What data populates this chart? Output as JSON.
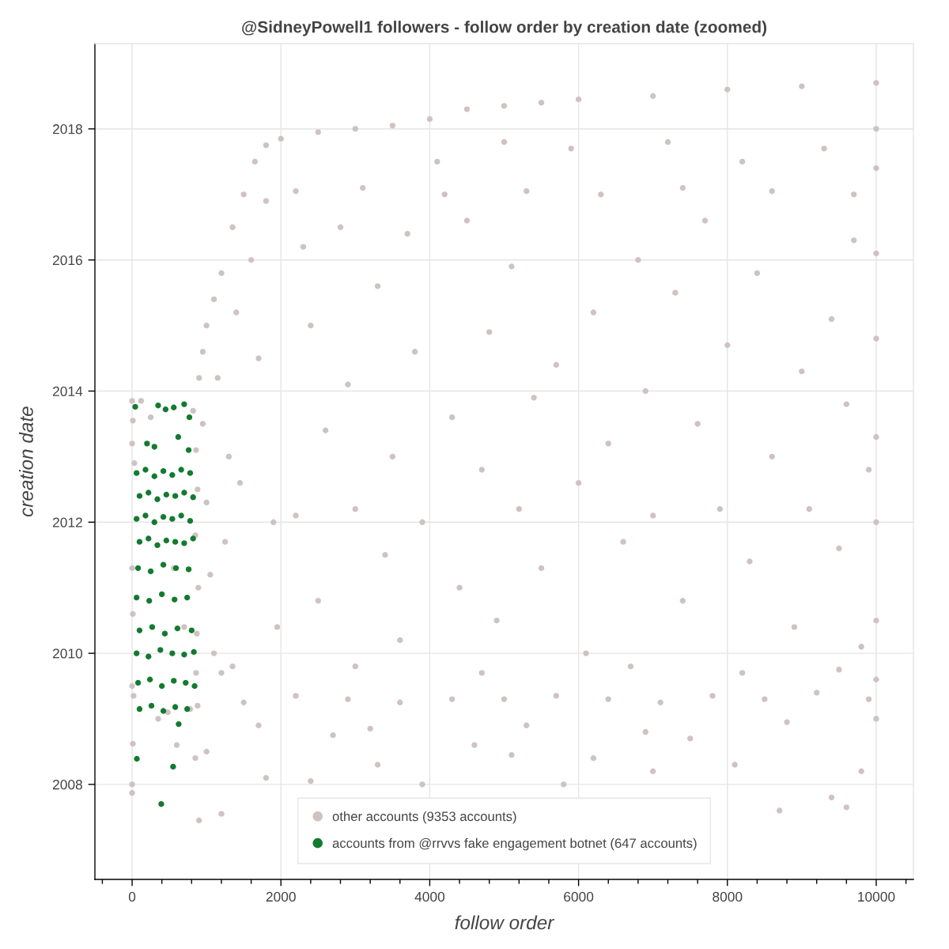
{
  "chart_data": {
    "type": "scatter",
    "title": "@SidneyPowell1 followers - follow order by creation date (zoomed)",
    "xlabel": "follow order",
    "ylabel": "creation date",
    "xlim": [
      -500,
      10500
    ],
    "ylim": [
      2006.55,
      2019.3
    ],
    "xticks": [
      {
        "value": -400,
        "label": null
      },
      0,
      {
        "value": 400,
        "label": null
      },
      {
        "value": 800,
        "label": null
      },
      {
        "value": 1200,
        "label": null
      },
      {
        "value": 1600,
        "label": null
      },
      2000,
      {
        "value": 2400,
        "label": null
      },
      {
        "value": 2800,
        "label": null
      },
      {
        "value": 3200,
        "label": null
      },
      {
        "value": 3600,
        "label": null
      },
      4000,
      {
        "value": 4400,
        "label": null
      },
      {
        "value": 4800,
        "label": null
      },
      {
        "value": 5200,
        "label": null
      },
      {
        "value": 5600,
        "label": null
      },
      6000,
      {
        "value": 6400,
        "label": null
      },
      {
        "value": 6800,
        "label": null
      },
      {
        "value": 7200,
        "label": null
      },
      {
        "value": 7600,
        "label": null
      },
      8000,
      {
        "value": 8400,
        "label": null
      },
      {
        "value": 8800,
        "label": null
      },
      {
        "value": 9200,
        "label": null
      },
      {
        "value": 9600,
        "label": null
      },
      10000,
      {
        "value": 10400,
        "label": null
      }
    ],
    "yticks": [
      2008,
      2010,
      2012,
      2014,
      2016,
      2018
    ],
    "grid": true,
    "legend": "bottom",
    "marker": "circle",
    "series": [
      {
        "name": "other accounts (9353 accounts)",
        "color": "#cfc2c2",
        "x": [
          0,
          10,
          0,
          30,
          0,
          10,
          0,
          20,
          10,
          0,
          0,
          120,
          250,
          350,
          480,
          600,
          820,
          860,
          880,
          850,
          890,
          870,
          860,
          880,
          780,
          700,
          560,
          850,
          900,
          950,
          1000,
          1050,
          1100,
          1150,
          1300,
          1250,
          1400,
          1450,
          1600,
          1700,
          1800,
          1900,
          1950,
          1350,
          900,
          950,
          1000,
          1100,
          1200,
          1350,
          1500,
          1650,
          1800,
          2000,
          2500,
          3000,
          3500,
          4000,
          4500,
          5000,
          5500,
          6000,
          7000,
          8000,
          9000,
          10000,
          2200,
          3100,
          4200,
          5300,
          6300,
          7400,
          8600,
          9700,
          2300,
          2400,
          2600,
          2200,
          2500,
          2800,
          2900,
          3000,
          3300,
          3400,
          3500,
          3600,
          3700,
          3800,
          3900,
          4100,
          4300,
          4400,
          4500,
          4700,
          4800,
          4900,
          5000,
          5100,
          5200,
          5400,
          5500,
          5700,
          5900,
          6000,
          6100,
          6200,
          6400,
          6600,
          6800,
          6900,
          7000,
          7200,
          7300,
          7400,
          7600,
          7700,
          7900,
          8000,
          8200,
          8300,
          8400,
          8600,
          8900,
          9000,
          9100,
          9300,
          9400,
          9500,
          9600,
          9700,
          9800,
          9900,
          10000,
          10000,
          10000,
          10000,
          10000,
          10000,
          10000,
          10000,
          10000,
          1500,
          2200,
          2900,
          3600,
          4300,
          5000,
          5700,
          6400,
          7100,
          7800,
          8500,
          9200,
          9900,
          1200,
          3000,
          4700,
          6700,
          8200,
          9500,
          1700,
          3200,
          5300,
          6900,
          8800,
          1000,
          1800,
          2400,
          3300,
          3900,
          4600,
          5800,
          6200,
          7000,
          7500,
          8100,
          8700,
          9400,
          9600,
          9800,
          1200,
          2700,
          5100
        ],
        "values": [
          2013.85,
          2013.55,
          2013.2,
          2012.9,
          2011.3,
          2010.6,
          2009.5,
          2009.35,
          2008.62,
          2008.0,
          2007.87,
          2013.85,
          2013.6,
          2009.0,
          2009.1,
          2008.6,
          2013.7,
          2013.1,
          2012.5,
          2011.8,
          2011.0,
          2010.3,
          2009.7,
          2009.2,
          2009.15,
          2010.4,
          2011.3,
          2008.4,
          2007.45,
          2013.5,
          2012.3,
          2011.2,
          2010.0,
          2014.2,
          2013.0,
          2011.7,
          2015.2,
          2012.6,
          2016.0,
          2014.5,
          2016.9,
          2012.0,
          2010.4,
          2009.8,
          2014.2,
          2014.6,
          2015.0,
          2015.4,
          2015.8,
          2016.5,
          2017.0,
          2017.5,
          2017.75,
          2017.85,
          2017.95,
          2018.0,
          2018.05,
          2018.15,
          2018.3,
          2018.35,
          2018.4,
          2018.45,
          2018.5,
          2018.6,
          2018.65,
          2018.7,
          2017.05,
          2017.1,
          2017.0,
          2017.05,
          2017.0,
          2017.1,
          2017.05,
          2017.0,
          2016.2,
          2015.0,
          2013.4,
          2012.1,
          2010.8,
          2016.5,
          2014.1,
          2012.2,
          2015.6,
          2011.5,
          2013.0,
          2010.2,
          2016.4,
          2014.6,
          2012.0,
          2017.5,
          2013.6,
          2011.0,
          2016.6,
          2012.8,
          2014.9,
          2010.5,
          2017.8,
          2015.9,
          2012.2,
          2013.9,
          2011.3,
          2014.4,
          2017.7,
          2012.6,
          2010.0,
          2015.2,
          2013.2,
          2011.7,
          2016.0,
          2014.0,
          2012.1,
          2017.8,
          2015.5,
          2010.8,
          2013.5,
          2016.6,
          2012.2,
          2014.7,
          2017.5,
          2011.4,
          2015.8,
          2013.0,
          2010.4,
          2014.3,
          2012.2,
          2017.7,
          2015.1,
          2011.6,
          2013.8,
          2016.3,
          2010.1,
          2012.8,
          2018.0,
          2017.4,
          2016.1,
          2014.8,
          2013.3,
          2012.0,
          2010.5,
          2009.6,
          2009.0,
          2009.25,
          2009.35,
          2009.3,
          2009.25,
          2009.3,
          2009.3,
          2009.35,
          2009.3,
          2009.25,
          2009.35,
          2009.3,
          2009.4,
          2009.3,
          2009.7,
          2009.8,
          2009.7,
          2009.8,
          2009.7,
          2009.75,
          2008.9,
          2008.85,
          2008.9,
          2008.8,
          2008.95,
          2008.5,
          2008.1,
          2008.05,
          2008.3,
          2008.0,
          2008.6,
          2008.0,
          2008.4,
          2008.2,
          2008.7,
          2008.3,
          2007.6,
          2007.8,
          2007.65,
          2008.2,
          2007.55,
          2008.75,
          2008.45
        ]
      },
      {
        "name": "accounts from @rrvvs fake engagement botnet (647 accounts)",
        "color": "#137a30",
        "x": [
          64,
          551,
          392,
          626,
          42,
          350,
          450,
          560,
          700,
          770,
          200,
          300,
          620,
          760,
          60,
          180,
          300,
          420,
          540,
          660,
          780,
          100,
          220,
          340,
          460,
          580,
          700,
          820,
          60,
          180,
          300,
          420,
          540,
          660,
          780,
          100,
          220,
          340,
          460,
          580,
          700,
          820,
          80,
          250,
          420,
          590,
          760,
          60,
          230,
          400,
          570,
          740,
          100,
          270,
          440,
          610,
          800,
          60,
          220,
          380,
          540,
          700,
          830,
          80,
          240,
          400,
          560,
          720,
          840,
          100,
          260,
          420,
          580,
          740
        ],
        "values": [
          2008.39,
          2008.27,
          2007.7,
          2008.92,
          2013.76,
          2013.78,
          2013.72,
          2013.75,
          2013.8,
          2013.6,
          2013.2,
          2013.15,
          2013.3,
          2013.1,
          2012.75,
          2012.8,
          2012.7,
          2012.78,
          2012.72,
          2012.8,
          2012.75,
          2012.4,
          2012.45,
          2012.35,
          2012.42,
          2012.4,
          2012.45,
          2012.38,
          2012.05,
          2012.1,
          2012.0,
          2012.08,
          2012.05,
          2012.1,
          2012.02,
          2011.7,
          2011.75,
          2011.65,
          2011.72,
          2011.7,
          2011.68,
          2011.75,
          2011.3,
          2011.25,
          2011.35,
          2011.3,
          2011.28,
          2010.85,
          2010.8,
          2010.9,
          2010.82,
          2010.85,
          2010.35,
          2010.4,
          2010.3,
          2010.38,
          2010.35,
          2010.0,
          2009.95,
          2010.05,
          2010.0,
          2009.98,
          2010.02,
          2009.55,
          2009.6,
          2009.5,
          2009.58,
          2009.55,
          2009.5,
          2009.15,
          2009.2,
          2009.12,
          2009.18,
          2009.15
        ]
      }
    ]
  }
}
